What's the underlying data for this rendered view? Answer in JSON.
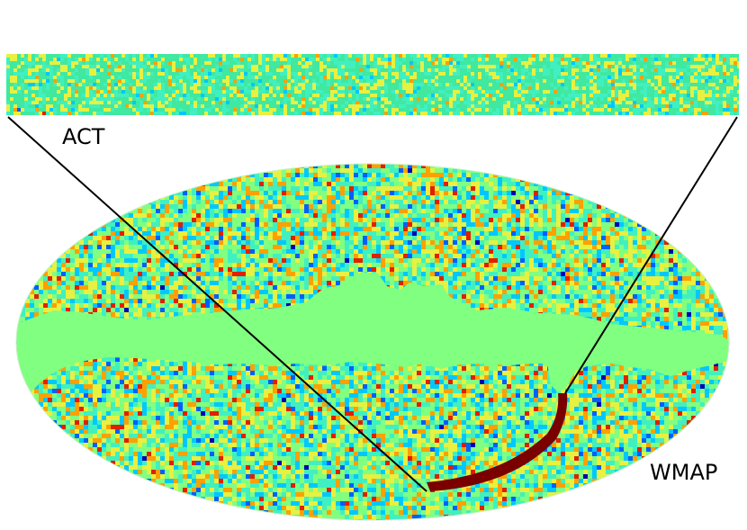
{
  "labels": {
    "act": "ACT",
    "wmap": "WMAP"
  },
  "colors": {
    "mask_green": "#80ff80",
    "strip_band": "#7a0000",
    "line": "#000000",
    "colormap": [
      "#0000b0",
      "#0060ff",
      "#00c8ff",
      "#40f0c0",
      "#80ff80",
      "#e8f040",
      "#ffa000",
      "#e02000"
    ]
  }
}
